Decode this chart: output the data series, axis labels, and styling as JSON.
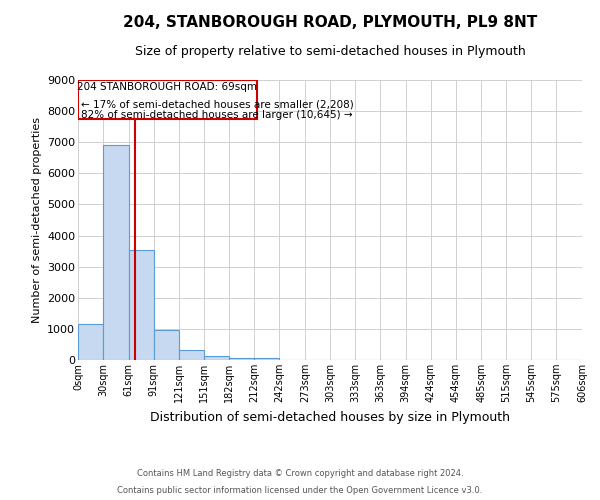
{
  "title": "204, STANBOROUGH ROAD, PLYMOUTH, PL9 8NT",
  "subtitle": "Size of property relative to semi-detached houses in Plymouth",
  "xlabel": "Distribution of semi-detached houses by size in Plymouth",
  "ylabel": "Number of semi-detached properties",
  "footnote1": "Contains HM Land Registry data © Crown copyright and database right 2024.",
  "footnote2": "Contains public sector information licensed under the Open Government Licence v3.0.",
  "bin_edges": [
    0,
    30,
    61,
    91,
    121,
    151,
    182,
    212,
    242,
    273,
    303,
    333,
    363,
    394,
    424,
    454,
    485,
    515,
    545,
    575,
    606
  ],
  "bar_heights": [
    1150,
    6900,
    3550,
    970,
    320,
    130,
    80,
    50,
    0,
    0,
    0,
    0,
    0,
    0,
    0,
    0,
    0,
    0,
    0,
    0
  ],
  "bar_color": "#c6d9f0",
  "bar_edge_color": "#5b9bd5",
  "property_size": 69,
  "red_line_color": "#cc0000",
  "annotation_text_line1": "204 STANBOROUGH ROAD: 69sqm",
  "annotation_text_line2": "← 17% of semi-detached houses are smaller (2,208)",
  "annotation_text_line3": "82% of semi-detached houses are larger (10,645) →",
  "annotation_box_color": "#cc0000",
  "ylim": [
    0,
    9000
  ],
  "yticks": [
    0,
    1000,
    2000,
    3000,
    4000,
    5000,
    6000,
    7000,
    8000,
    9000
  ],
  "background_color": "#ffffff",
  "grid_color": "#d0d0d0",
  "title_fontsize": 11,
  "subtitle_fontsize": 9,
  "tick_label_fontsize": 7,
  "ylabel_fontsize": 8,
  "xlabel_fontsize": 9,
  "annot_fontsize": 7.5,
  "footnote_fontsize": 6
}
